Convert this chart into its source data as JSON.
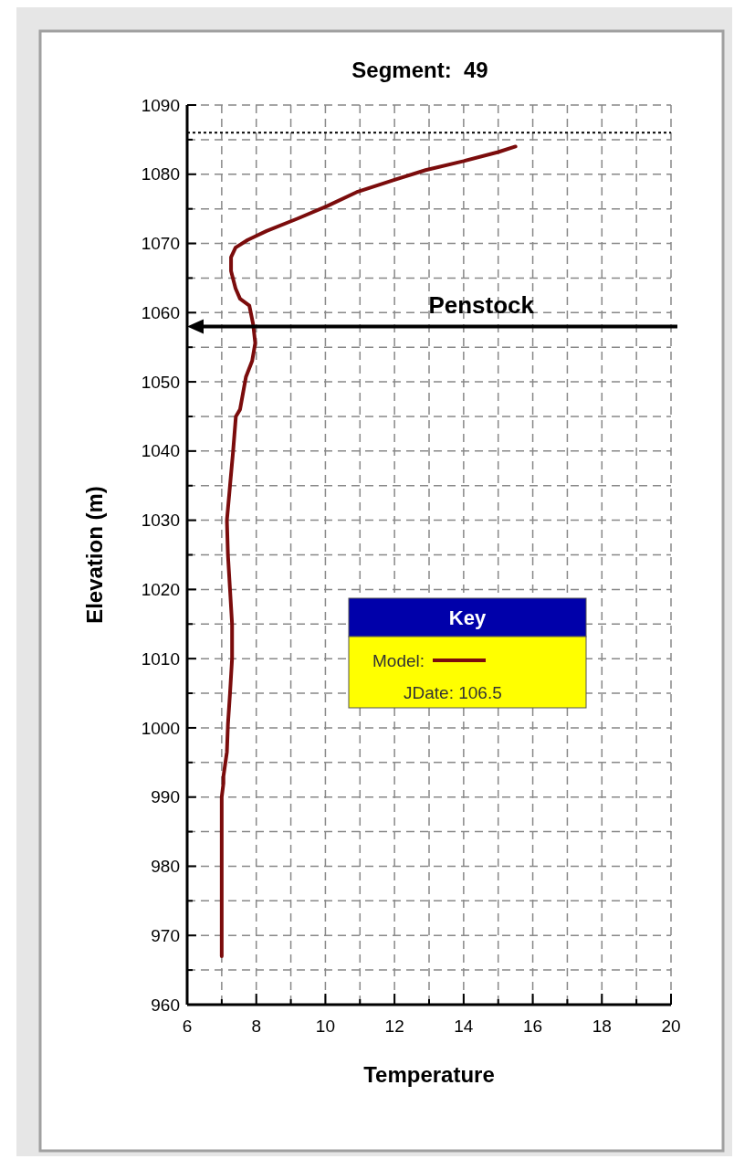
{
  "chart_data": {
    "type": "line",
    "title": "Segment:  49",
    "xlabel": "Temperature",
    "ylabel": "Elevation (m)",
    "legend_title": "Key",
    "annotations": [
      "JDate: 106.5"
    ],
    "xlim": [
      6,
      20
    ],
    "xticks": [
      6,
      {
        "value": 7,
        "label": null
      },
      8,
      {
        "value": 9,
        "label": null
      },
      10,
      {
        "value": 11,
        "label": null
      },
      12,
      {
        "value": 13,
        "label": null
      },
      14,
      {
        "value": 15,
        "label": null
      },
      16,
      {
        "value": 17,
        "label": null
      },
      18,
      {
        "value": 19,
        "label": null
      },
      20
    ],
    "ylim": [
      960,
      1090
    ],
    "yticks": [
      960,
      {
        "value": 965,
        "label": null
      },
      970,
      {
        "value": 975,
        "label": null
      },
      980,
      {
        "value": 985,
        "label": null
      },
      990,
      {
        "value": 995,
        "label": null
      },
      1000,
      {
        "value": 1005,
        "label": null
      },
      1010,
      {
        "value": 1015,
        "label": null
      },
      1020,
      {
        "value": 1025,
        "label": null
      },
      1030,
      {
        "value": 1035,
        "label": null
      },
      1040,
      {
        "value": 1045,
        "label": null
      },
      1050,
      {
        "value": 1055,
        "label": null
      },
      1060,
      {
        "value": 1065,
        "label": null
      },
      1070,
      {
        "value": 1075,
        "label": null
      },
      1080,
      {
        "value": 1085,
        "label": null
      },
      1090
    ],
    "grid": true,
    "legend": "right",
    "line_style": "solid",
    "ref_lines": [
      {
        "axis": "y",
        "value": 1058,
        "label": "Penstock",
        "color": "#000000",
        "line_style": "solid"
      },
      {
        "axis": "y",
        "value": 1086,
        "label": null,
        "color": "#000000",
        "line_style": "dotted"
      }
    ],
    "series": [
      {
        "name": "Model:",
        "color": "#7b0c0c",
        "x": [
          7.0,
          7.0,
          7.0,
          7.05,
          7.05,
          7.15,
          7.18,
          7.24,
          7.3,
          7.3,
          7.24,
          7.18,
          7.15,
          7.24,
          7.33,
          7.41,
          7.53,
          7.7,
          7.88,
          7.97,
          7.91,
          7.8,
          7.53,
          7.4,
          7.27,
          7.27,
          7.4,
          7.75,
          8.3,
          9.2,
          10.05,
          10.9,
          12.0,
          12.9,
          14.0,
          15.0,
          15.5
        ],
        "values": [
          967,
          980,
          990,
          992,
          993,
          996.5,
          1000.5,
          1005,
          1010,
          1015,
          1020,
          1025,
          1030,
          1035,
          1040,
          1045,
          1046,
          1050.7,
          1053,
          1055.6,
          1058.3,
          1061,
          1062,
          1063.5,
          1066,
          1068,
          1069.4,
          1070.5,
          1071.8,
          1073.6,
          1075.4,
          1077.4,
          1079.2,
          1080.6,
          1081.9,
          1083.2,
          1084
        ]
      }
    ]
  }
}
